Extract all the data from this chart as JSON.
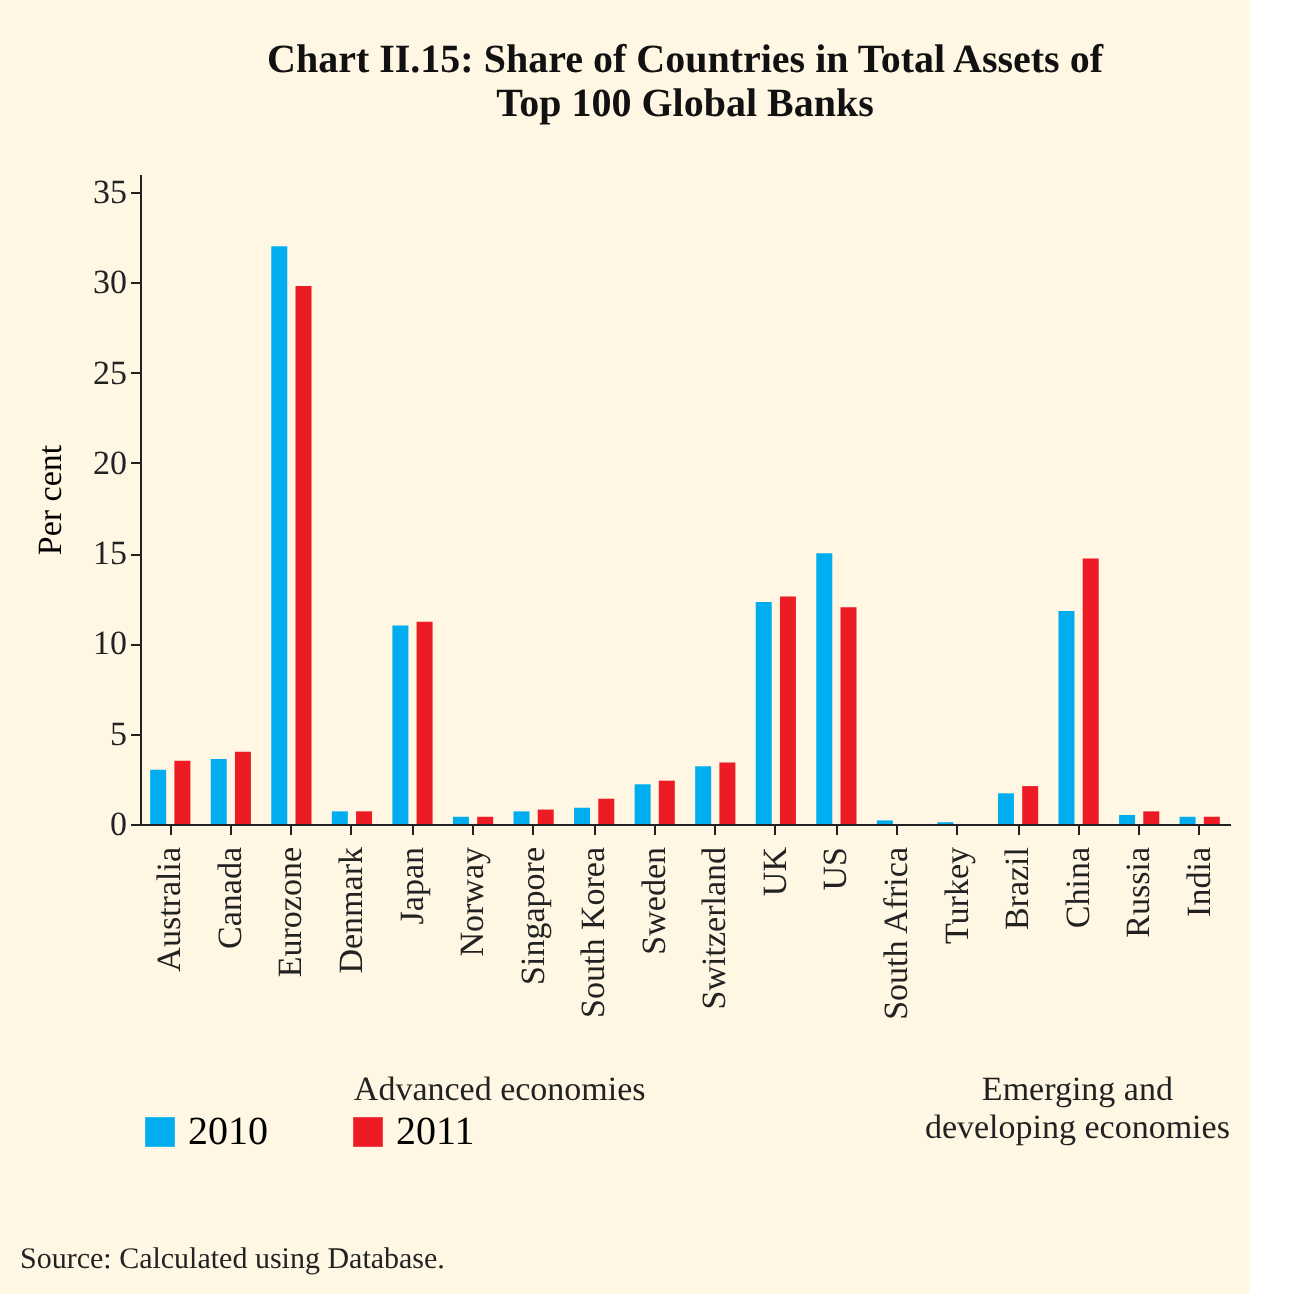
{
  "chart_data": {
    "type": "bar",
    "title": "Chart II.15: Share of Countries in Total Assets of\nTop 100 Global Banks",
    "ylabel": "Per cent",
    "categories": [
      "Australia",
      "Canada",
      "Eurozone",
      "Denmark",
      "Japan",
      "Norway",
      "Singapore",
      "South Korea",
      "Sweden",
      "Switzerland",
      "UK",
      "US",
      "South Africa",
      "Turkey",
      "Brazil",
      "China",
      "Russia",
      "India"
    ],
    "series": [
      {
        "name": "2010",
        "color": "#00aeef",
        "values": [
          3.0,
          3.6,
          32.0,
          0.7,
          11.0,
          0.4,
          0.7,
          0.9,
          2.2,
          3.2,
          12.3,
          15.0,
          0.2,
          0.1,
          1.7,
          11.8,
          0.5,
          0.4
        ]
      },
      {
        "name": "2011",
        "color": "#ed1c24",
        "values": [
          3.5,
          4.0,
          29.8,
          0.7,
          11.2,
          0.4,
          0.8,
          1.4,
          2.4,
          3.4,
          12.6,
          12.0,
          0.0,
          0.0,
          2.1,
          14.7,
          0.7,
          0.4
        ]
      }
    ],
    "ylim": [
      0,
      36
    ],
    "yticks": [
      0,
      5,
      10,
      15,
      20,
      25,
      30,
      35
    ],
    "grid": false,
    "legend": "bottom",
    "annotations": [
      "Advanced economies",
      "Emerging and\ndeveloping economies",
      "Source: Calculated using Database."
    ]
  }
}
